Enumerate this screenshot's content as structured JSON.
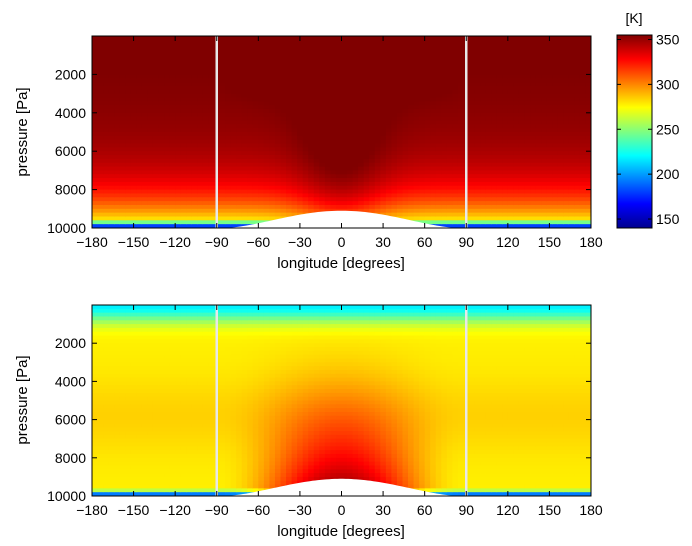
{
  "chart_data": [
    {
      "type": "heatmap",
      "panel": "top",
      "title": "",
      "xlabel": "longitude [degrees]",
      "ylabel": "pressure [Pa]",
      "xlim": [
        -180,
        180
      ],
      "ylim": [
        0,
        10000
      ],
      "y_reversed": true,
      "xticks": [
        -180,
        -150,
        -120,
        -90,
        -60,
        -30,
        0,
        30,
        60,
        90,
        120,
        150,
        180
      ],
      "yticks": [
        2000,
        4000,
        6000,
        8000,
        10000
      ],
      "terminator_lines": [
        -90,
        90
      ],
      "topography_peak_pressure": 9100,
      "topography_halfwidth_deg": 85,
      "contour_levels_K": [
        150,
        200,
        250,
        300,
        350
      ],
      "colorbar": {
        "label": "[K]",
        "ticks": [
          150,
          200,
          250,
          300,
          350
        ],
        "range": [
          140,
          355
        ]
      }
    },
    {
      "type": "heatmap",
      "panel": "bottom",
      "title": "",
      "xlabel": "longitude [degrees]",
      "ylabel": "pressure [Pa]",
      "xlim": [
        -180,
        180
      ],
      "ylim": [
        0,
        10000
      ],
      "y_reversed": true,
      "xticks": [
        -180,
        -150,
        -120,
        -90,
        -60,
        -30,
        0,
        30,
        60,
        90,
        120,
        150,
        180
      ],
      "yticks": [
        2000,
        4000,
        6000,
        8000,
        10000
      ],
      "terminator_lines": [
        -90,
        90
      ],
      "topography_peak_pressure": 9100,
      "topography_halfwidth_deg": 85,
      "colorbar": null
    }
  ]
}
